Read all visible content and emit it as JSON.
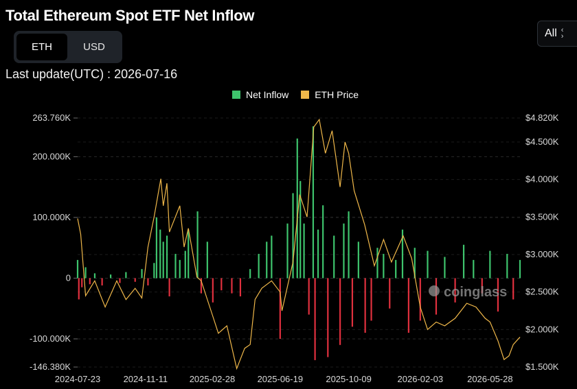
{
  "header": {
    "title": "Total Ethereum Spot ETF Net Inflow",
    "units": [
      "ETH",
      "USD"
    ],
    "active_unit": "ETH",
    "range_label": "All",
    "last_update": "Last update(UTC) : 2026-07-16"
  },
  "watermark": "coinglass",
  "colors": {
    "inflow": "#3ec46d",
    "outflow": "#e0303e",
    "price": "#f0b84a",
    "grid": "#2a2a2a"
  },
  "chart_data": {
    "type": "bar",
    "legend": [
      {
        "name": "Net Inflow",
        "color": "#3ec46d"
      },
      {
        "name": "ETH Price",
        "color": "#f0b84a"
      }
    ],
    "x_ticks": [
      "2024-07-23",
      "2024-11-11",
      "2025-02-28",
      "2025-06-19",
      "2025-10-09",
      "2026-02-03",
      "2026-05-28"
    ],
    "x_range": [
      "2024-07-23",
      "2026-07-16"
    ],
    "y_left": {
      "label": "",
      "ticks": [
        "263.760K",
        "200.000K",
        "100.000K",
        "0",
        "-100.000K",
        "-146.380K"
      ],
      "tick_values": [
        263760,
        200000,
        100000,
        0,
        -100000,
        -146380
      ],
      "range": [
        -146380,
        263760
      ]
    },
    "y_right": {
      "label": "",
      "ticks": [
        "$4.820K",
        "$4.500K",
        "$4.000K",
        "$3.500K",
        "$3.000K",
        "$2.500K",
        "$2.000K",
        "$1.500K"
      ],
      "tick_values": [
        4820,
        4500,
        4000,
        3500,
        3000,
        2500,
        2000,
        1500
      ],
      "range": [
        1500,
        4820
      ]
    },
    "series": [
      {
        "name": "Net Inflow",
        "type": "bar",
        "points": [
          [
            "2024-07-23",
            30000
          ],
          [
            "2024-07-25",
            -35000
          ],
          [
            "2024-07-30",
            -15000
          ],
          [
            "2024-08-05",
            18000
          ],
          [
            "2024-08-12",
            -10000
          ],
          [
            "2024-08-20",
            8000
          ],
          [
            "2024-09-01",
            -12000
          ],
          [
            "2024-09-15",
            6000
          ],
          [
            "2024-09-30",
            -8000
          ],
          [
            "2024-10-10",
            10000
          ],
          [
            "2024-10-25",
            -6000
          ],
          [
            "2024-11-05",
            15000
          ],
          [
            "2024-11-15",
            -12000
          ],
          [
            "2024-11-25",
            25000
          ],
          [
            "2024-11-29",
            100000
          ],
          [
            "2024-12-05",
            80000
          ],
          [
            "2024-12-10",
            60000
          ],
          [
            "2024-12-16",
            70000
          ],
          [
            "2024-12-20",
            -30000
          ],
          [
            "2024-12-30",
            40000
          ],
          [
            "2025-01-06",
            30000
          ],
          [
            "2025-01-15",
            45000
          ],
          [
            "2025-01-20",
            80000
          ],
          [
            "2025-02-04",
            110000
          ],
          [
            "2025-02-10",
            -25000
          ],
          [
            "2025-02-20",
            60000
          ],
          [
            "2025-03-01",
            -40000
          ],
          [
            "2025-03-15",
            -20000
          ],
          [
            "2025-04-01",
            -25000
          ],
          [
            "2025-04-15",
            -30000
          ],
          [
            "2025-05-01",
            15000
          ],
          [
            "2025-05-15",
            40000
          ],
          [
            "2025-05-28",
            60000
          ],
          [
            "2025-06-05",
            70000
          ],
          [
            "2025-06-19",
            -100000
          ],
          [
            "2025-07-01",
            90000
          ],
          [
            "2025-07-10",
            140000
          ],
          [
            "2025-07-17",
            230000
          ],
          [
            "2025-07-22",
            160000
          ],
          [
            "2025-07-28",
            90000
          ],
          [
            "2025-08-05",
            -60000
          ],
          [
            "2025-08-12",
            250000
          ],
          [
            "2025-08-15",
            -135000
          ],
          [
            "2025-08-20",
            80000
          ],
          [
            "2025-08-28",
            120000
          ],
          [
            "2025-09-05",
            -130000
          ],
          [
            "2025-09-15",
            70000
          ],
          [
            "2025-09-25",
            -110000
          ],
          [
            "2025-10-01",
            90000
          ],
          [
            "2025-10-09",
            110000
          ],
          [
            "2025-10-15",
            -80000
          ],
          [
            "2025-10-25",
            60000
          ],
          [
            "2025-11-05",
            -90000
          ],
          [
            "2025-11-15",
            -70000
          ],
          [
            "2025-11-25",
            50000
          ],
          [
            "2025-12-05",
            40000
          ],
          [
            "2025-12-15",
            -50000
          ],
          [
            "2025-12-25",
            30000
          ],
          [
            "2026-01-05",
            80000
          ],
          [
            "2026-01-15",
            -90000
          ],
          [
            "2026-01-25",
            50000
          ],
          [
            "2026-02-03",
            -70000
          ],
          [
            "2026-02-15",
            45000
          ],
          [
            "2026-03-01",
            -60000
          ],
          [
            "2026-03-15",
            35000
          ],
          [
            "2026-04-01",
            -40000
          ],
          [
            "2026-04-15",
            55000
          ],
          [
            "2026-05-01",
            30000
          ],
          [
            "2026-05-15",
            -25000
          ],
          [
            "2026-05-28",
            45000
          ],
          [
            "2026-06-10",
            -55000
          ],
          [
            "2026-06-25",
            40000
          ],
          [
            "2026-07-05",
            -35000
          ],
          [
            "2026-07-16",
            30000
          ]
        ]
      },
      {
        "name": "ETH Price",
        "type": "line",
        "axis": "right",
        "points": [
          [
            "2024-07-23",
            3480
          ],
          [
            "2024-07-28",
            3270
          ],
          [
            "2024-08-05",
            2450
          ],
          [
            "2024-08-20",
            2650
          ],
          [
            "2024-09-06",
            2300
          ],
          [
            "2024-09-25",
            2650
          ],
          [
            "2024-10-10",
            2400
          ],
          [
            "2024-10-25",
            2550
          ],
          [
            "2024-11-05",
            2420
          ],
          [
            "2024-11-15",
            3100
          ],
          [
            "2024-11-25",
            3500
          ],
          [
            "2024-12-06",
            4010
          ],
          [
            "2024-12-10",
            3650
          ],
          [
            "2024-12-16",
            3950
          ],
          [
            "2024-12-20",
            3300
          ],
          [
            "2025-01-06",
            3650
          ],
          [
            "2025-01-13",
            3100
          ],
          [
            "2025-01-20",
            3350
          ],
          [
            "2025-02-03",
            2700
          ],
          [
            "2025-02-10",
            2650
          ],
          [
            "2025-02-24",
            2300
          ],
          [
            "2025-02-28",
            2200
          ],
          [
            "2025-03-10",
            1950
          ],
          [
            "2025-03-24",
            2050
          ],
          [
            "2025-04-09",
            1480
          ],
          [
            "2025-04-22",
            1750
          ],
          [
            "2025-05-01",
            1800
          ],
          [
            "2025-05-09",
            2400
          ],
          [
            "2025-05-20",
            2550
          ],
          [
            "2025-06-05",
            2650
          ],
          [
            "2025-06-19",
            2500
          ],
          [
            "2025-06-22",
            2250
          ],
          [
            "2025-07-10",
            2900
          ],
          [
            "2025-07-21",
            3800
          ],
          [
            "2025-08-02",
            3500
          ],
          [
            "2025-08-13",
            4700
          ],
          [
            "2025-08-22",
            4800
          ],
          [
            "2025-09-01",
            4350
          ],
          [
            "2025-09-12",
            4650
          ],
          [
            "2025-09-25",
            3900
          ],
          [
            "2025-10-03",
            4500
          ],
          [
            "2025-10-09",
            4350
          ],
          [
            "2025-10-18",
            3850
          ],
          [
            "2025-11-04",
            3400
          ],
          [
            "2025-11-20",
            2850
          ],
          [
            "2025-12-05",
            3200
          ],
          [
            "2025-12-18",
            2900
          ],
          [
            "2026-01-06",
            3250
          ],
          [
            "2026-01-20",
            2950
          ],
          [
            "2026-02-03",
            2300
          ],
          [
            "2026-02-15",
            2000
          ],
          [
            "2026-03-01",
            2100
          ],
          [
            "2026-03-15",
            2050
          ],
          [
            "2026-04-01",
            2150
          ],
          [
            "2026-04-20",
            2350
          ],
          [
            "2026-05-05",
            2300
          ],
          [
            "2026-05-20",
            2150
          ],
          [
            "2026-05-28",
            2100
          ],
          [
            "2026-06-10",
            1850
          ],
          [
            "2026-06-20",
            1600
          ],
          [
            "2026-06-28",
            1650
          ],
          [
            "2026-07-05",
            1800
          ],
          [
            "2026-07-16",
            1900
          ]
        ]
      }
    ],
    "grid": true,
    "legend_position": "top-center"
  }
}
